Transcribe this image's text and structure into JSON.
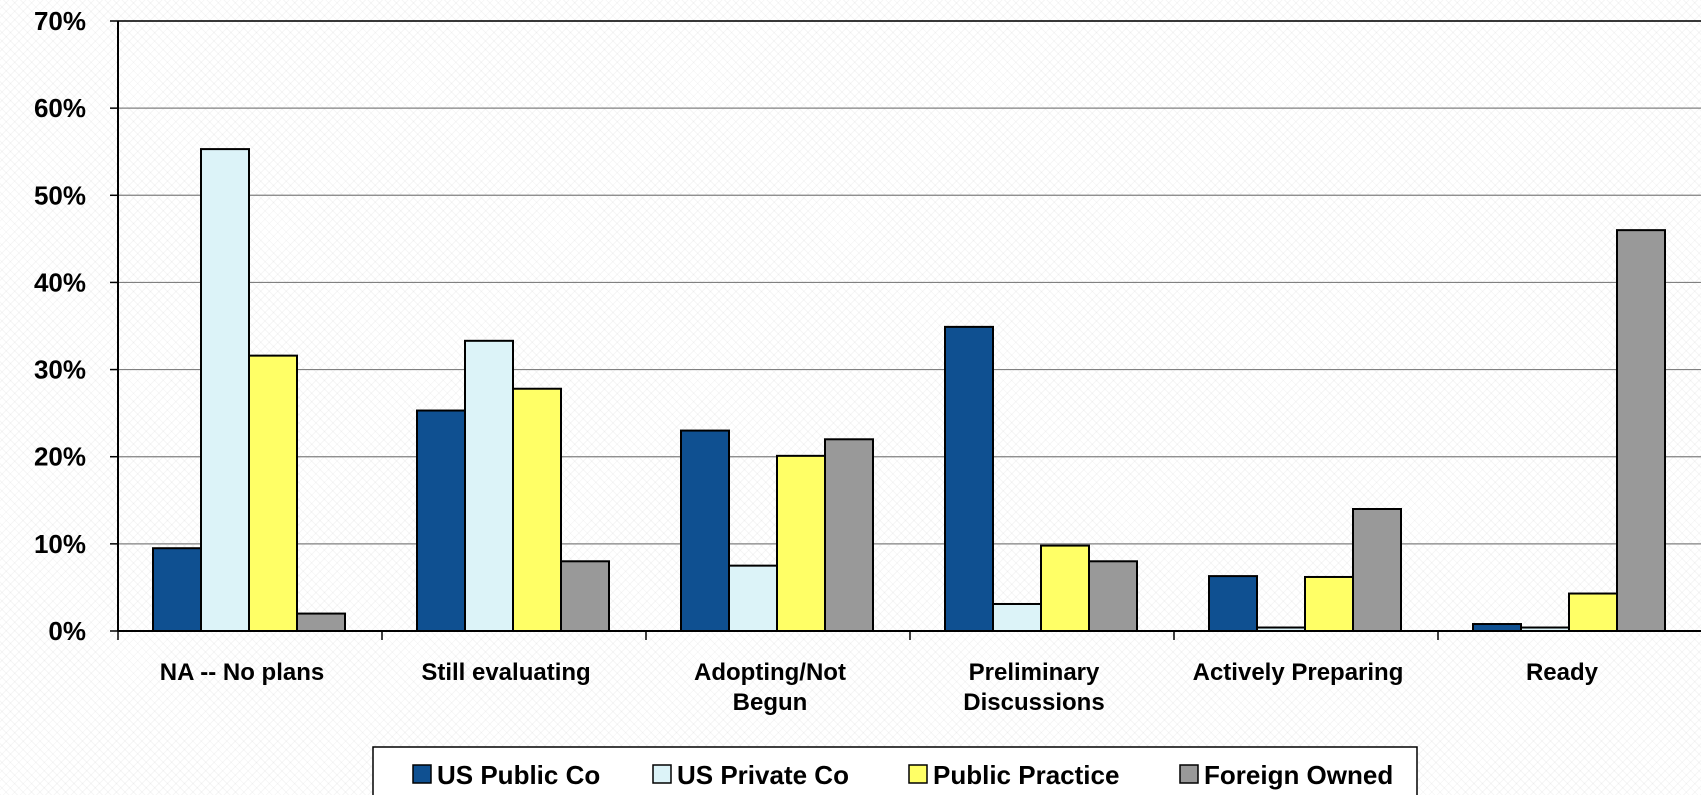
{
  "colors": {
    "us_public": "#0f5091",
    "us_private": "#dcf3f8",
    "public_practice": "#ffff66",
    "foreign_owned": "#999999",
    "bar_stroke": "#000000",
    "gridline": "#808080"
  },
  "chart_data": {
    "type": "bar",
    "title": "",
    "xlabel": "",
    "ylabel": "",
    "ylim": [
      0,
      70
    ],
    "y_ticks": [
      0,
      10,
      20,
      30,
      40,
      50,
      60,
      70
    ],
    "y_tick_labels": [
      "0%",
      "10%",
      "20%",
      "30%",
      "40%",
      "50%",
      "60%",
      "70%"
    ],
    "grid": true,
    "legend_position": "bottom",
    "categories": [
      "NA -- No plans",
      "Still evaluating",
      "Adopting/Not Begun",
      "Preliminary Discussions",
      "Actively Preparing",
      "Ready"
    ],
    "category_label_lines": [
      [
        "NA -- No plans"
      ],
      [
        "Still evaluating"
      ],
      [
        "Adopting/Not",
        "Begun"
      ],
      [
        "Preliminary",
        "Discussions"
      ],
      [
        "Actively Preparing"
      ],
      [
        "Ready"
      ]
    ],
    "series": [
      {
        "name": "US Public Co",
        "color_key": "us_public",
        "values": [
          9.5,
          25.3,
          23.0,
          34.9,
          6.3,
          0.8
        ]
      },
      {
        "name": "US Private Co",
        "color_key": "us_private",
        "values": [
          55.3,
          33.3,
          7.5,
          3.1,
          0.4,
          0.4
        ]
      },
      {
        "name": "Public Practice",
        "color_key": "public_practice",
        "values": [
          31.6,
          27.8,
          20.1,
          9.8,
          6.2,
          4.3
        ]
      },
      {
        "name": "Foreign Owned",
        "color_key": "foreign_owned",
        "values": [
          2.0,
          8.0,
          22.0,
          8.0,
          14.0,
          46.0
        ]
      }
    ]
  }
}
